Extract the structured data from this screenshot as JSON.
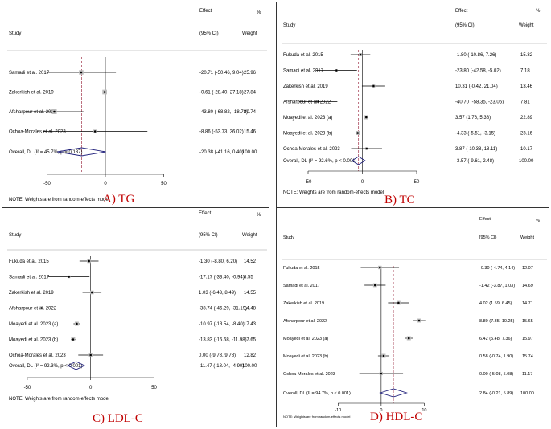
{
  "colors": {
    "diamond": "#1f1f7a",
    "ref_line": "#a0344a",
    "caption": "#c00000",
    "frame": "#333333"
  },
  "chart_data": [
    {
      "type": "forest",
      "caption": "A)  TG",
      "header": {
        "study": "Study",
        "effect": "Effect",
        "ci": "(95% CI)",
        "pct": "%",
        "weight": "Weight"
      },
      "xlim": [
        -80,
        60
      ],
      "x_ticks": [
        -50,
        0,
        50
      ],
      "x_tick_labels": [
        "-50",
        "0",
        "50"
      ],
      "studies": [
        {
          "name": "Samadi et al. 2017",
          "effect": -20.71,
          "lo": -50.46,
          "hi": 9.04,
          "ci_text": "-20.71 (-50.46, 9.04)",
          "weight": 25.96,
          "weight_text": "25.96"
        },
        {
          "name": "Zakerkish et al. 2019",
          "effect": -0.61,
          "lo": -28.4,
          "hi": 27.18,
          "ci_text": "-0.61 (-28.40, 27.18)",
          "weight": 27.84,
          "weight_text": "27.84"
        },
        {
          "name": "Afsharpour et al. 2022",
          "effect": -43.8,
          "lo": -68.82,
          "hi": -18.78,
          "ci_text": "-43.80 (-68.82, -18.78)",
          "weight": 30.74,
          "weight_text": "30.74"
        },
        {
          "name": "Ochoa-Morales et al. 2023",
          "effect": -8.86,
          "lo": -53.73,
          "hi": 36.02,
          "ci_text": "-8.86 (-53.73, 36.02)",
          "weight": 15.46,
          "weight_text": "15.46"
        }
      ],
      "overall": {
        "label": "Overall, DL (I² = 45.7%, p = 0.137)",
        "effect": -20.38,
        "lo": -41.16,
        "hi": 0.4,
        "ci_text": "-20.38 (-41.16, 0.40)",
        "weight_text": "100.00"
      },
      "note": "NOTE: Weights are from random-effects model"
    },
    {
      "type": "forest",
      "caption": "B)  TC",
      "header": {
        "study": "Study",
        "effect": "Effect",
        "ci": "(95% CI)",
        "pct": "%",
        "weight": "Weight"
      },
      "xlim": [
        -70,
        90
      ],
      "x_ticks": [
        -50,
        0,
        50
      ],
      "x_tick_labels": [
        "-50",
        "0",
        "50"
      ],
      "studies": [
        {
          "name": "Fukuda et al. 2015",
          "effect": -1.8,
          "lo": -10.86,
          "hi": 7.26,
          "ci_text": "-1.80 (-10.86, 7.26)",
          "weight": 15.32,
          "weight_text": "15.32"
        },
        {
          "name": "Samadi et al. 2017",
          "effect": -23.8,
          "lo": -42.58,
          "hi": -5.02,
          "ci_text": "-23.80 (-42.58, -5.02)",
          "weight": 7.18,
          "weight_text": "7.18"
        },
        {
          "name": "Zakerkish et al. 2019",
          "effect": 10.31,
          "lo": -0.42,
          "hi": 21.04,
          "ci_text": "10.31 (-0.42, 21.04)",
          "weight": 13.46,
          "weight_text": "13.46"
        },
        {
          "name": "Afsharpour et al. 2022",
          "effect": -40.7,
          "lo": -58.35,
          "hi": -23.05,
          "ci_text": "-40.70 (-58.35, -23.05)",
          "weight": 7.81,
          "weight_text": "7.81"
        },
        {
          "name": "Moayedi et al. 2023 (a)",
          "effect": 3.57,
          "lo": 1.76,
          "hi": 5.38,
          "ci_text": "3.57 (1.76, 5.38)",
          "weight": 22.89,
          "weight_text": "22.89"
        },
        {
          "name": "Moayedi et al. 2023 (b)",
          "effect": -4.33,
          "lo": -5.51,
          "hi": -3.15,
          "ci_text": "-4.33 (-5.51, -3.15)",
          "weight": 23.16,
          "weight_text": "23.16"
        },
        {
          "name": "Ochoa-Morales et al. 2023",
          "effect": 3.87,
          "lo": -10.38,
          "hi": 18.11,
          "ci_text": "3.87 (-10.38, 18.11)",
          "weight": 10.17,
          "weight_text": "10.17"
        }
      ],
      "overall": {
        "label": "Overall, DL (I² = 92.6%, p < 0.001)",
        "effect": -3.57,
        "lo": -9.61,
        "hi": 2.48,
        "ci_text": "-3.57 (-9.61, 2.48)",
        "weight_text": "100.00"
      },
      "note": "NOTE: Weights are from random-effects model"
    },
    {
      "type": "forest",
      "caption": "C)  LDL-C",
      "header": {
        "study": "Study",
        "effect": "Effect",
        "ci": "(95% CI)",
        "pct": "%",
        "weight": "Weight"
      },
      "xlim": [
        -62,
        70
      ],
      "x_ticks": [
        -50,
        0,
        50
      ],
      "x_tick_labels": [
        "-50",
        "0",
        "50"
      ],
      "studies": [
        {
          "name": "Fukuda et al. 2015",
          "effect": -1.3,
          "lo": -8.8,
          "hi": 6.2,
          "ci_text": "-1.30 (-8.80, 6.20)",
          "weight": 14.52,
          "weight_text": "14.52"
        },
        {
          "name": "Samadi et al. 2017",
          "effect": -17.17,
          "lo": -33.4,
          "hi": -0.94,
          "ci_text": "-17.17 (-33.40, -0.94)",
          "weight": 8.55,
          "weight_text": "8.55"
        },
        {
          "name": "Zakerkish et al. 2019",
          "effect": 1.03,
          "lo": -6.43,
          "hi": 8.49,
          "ci_text": "1.03 (-6.43, 8.49)",
          "weight": 14.55,
          "weight_text": "14.55"
        },
        {
          "name": "Afsharpour et al. 2022",
          "effect": -38.74,
          "lo": -46.29,
          "hi": -31.19,
          "ci_text": "-38.74 (-46.29, -31.19)",
          "weight": 14.48,
          "weight_text": "14.48"
        },
        {
          "name": "Moayedi et al. 2023 (a)",
          "effect": -10.97,
          "lo": -13.54,
          "hi": -8.4,
          "ci_text": "-10.97 (-13.54, -8.40)",
          "weight": 17.43,
          "weight_text": "17.43"
        },
        {
          "name": "Moayedi et al. 2023 (b)",
          "effect": -13.83,
          "lo": -15.68,
          "hi": -11.98,
          "ci_text": "-13.83 (-15.68, -11.98)",
          "weight": 17.65,
          "weight_text": "17.65"
        },
        {
          "name": "Ochoa-Morales et al. 2023",
          "effect": 0.0,
          "lo": -9.78,
          "hi": 9.78,
          "ci_text": "0.00 (-9.78, 9.78)",
          "weight": 12.82,
          "weight_text": "12.82"
        }
      ],
      "overall": {
        "label": "Overall, DL (I² = 92.3%, p < 0.001)",
        "effect": -11.47,
        "lo": -18.04,
        "hi": -4.9,
        "ci_text": "-11.47 (-18.04, -4.90)",
        "weight_text": "100.00"
      },
      "note": "NOTE: Weights are from random-effects model"
    },
    {
      "type": "forest",
      "caption": "D)  HDL-C",
      "header": {
        "study": "Study",
        "effect": "Effect",
        "ci": "[95% CI)",
        "pct": "%",
        "weight": "Weight"
      },
      "xlim": [
        -22,
        20
      ],
      "x_ticks": [
        -10,
        0,
        10
      ],
      "x_tick_labels": [
        "-10",
        "0",
        "10"
      ],
      "studies": [
        {
          "name": "Fukuda et al. 2015",
          "effect": -0.3,
          "lo": -4.74,
          "hi": 4.14,
          "ci_text": "-0.30 (-4.74, 4.14)",
          "weight": 12.07,
          "weight_text": "12.07"
        },
        {
          "name": "Samadi et al. 2017",
          "effect": -1.42,
          "lo": -3.87,
          "hi": 1.03,
          "ci_text": "-1.42 (-3.87, 1.03)",
          "weight": 14.69,
          "weight_text": "14.69"
        },
        {
          "name": "Zakerkish et al. 2019",
          "effect": 4.02,
          "lo": 1.59,
          "hi": 6.45,
          "ci_text": "4.02 (1.59, 6.45)",
          "weight": 14.71,
          "weight_text": "14.71"
        },
        {
          "name": "Afsharpour et al. 2022",
          "effect": 8.8,
          "lo": 7.35,
          "hi": 10.25,
          "ci_text": "8.80 (7.35, 10.25)",
          "weight": 15.65,
          "weight_text": "15.65"
        },
        {
          "name": "Moayedi et al. 2023 (a)",
          "effect": 6.42,
          "lo": 5.48,
          "hi": 7.36,
          "ci_text": "6.42 (5.48, 7.36)",
          "weight": 15.97,
          "weight_text": "15.97"
        },
        {
          "name": "Moayedi et al. 2023 (b)",
          "effect": 0.58,
          "lo": -0.74,
          "hi": 1.9,
          "ci_text": "0.58 (-0.74, 1.90)",
          "weight": 15.74,
          "weight_text": "15.74"
        },
        {
          "name": "Ochoa-Morales et al. 2023",
          "effect": 0.0,
          "lo": -5.08,
          "hi": 5.08,
          "ci_text": "0.00 (-5.08, 5.08)",
          "weight": 11.17,
          "weight_text": "11.17"
        }
      ],
      "overall": {
        "label": "Overall, DL (I² = 94.7%, p < 0.001)",
        "effect": 2.84,
        "lo": -0.21,
        "hi": 5.89,
        "ci_text": "2.84 (-0.21, 5.89)",
        "weight_text": "100.00"
      },
      "note": "NOTE: Weights are from random-effects model"
    }
  ]
}
